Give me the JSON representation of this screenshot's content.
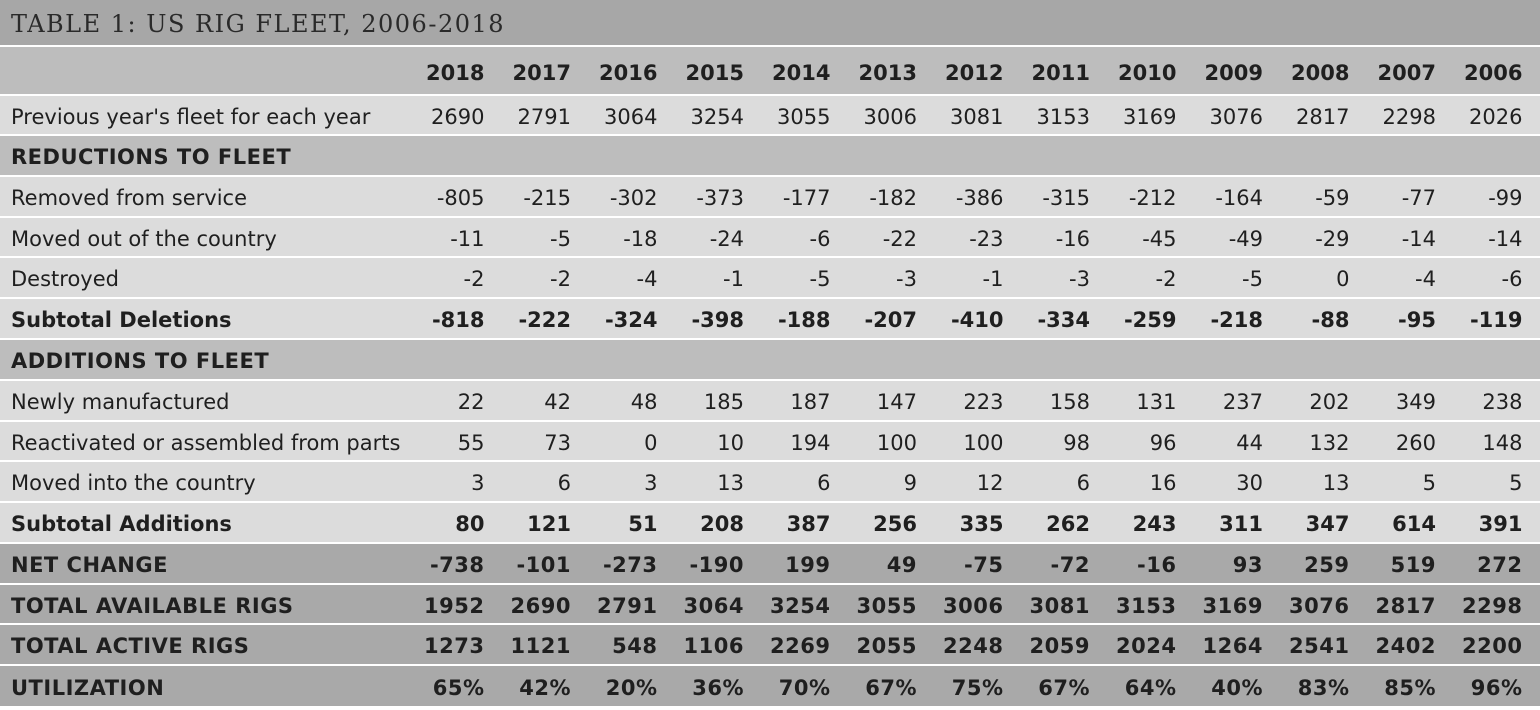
{
  "title": "TABLE 1: US RIG FLEET, 2006-2018",
  "years": [
    "2018",
    "2017",
    "2016",
    "2015",
    "2014",
    "2013",
    "2012",
    "2011",
    "2010",
    "2009",
    "2008",
    "2007",
    "2006"
  ],
  "rows": [
    {
      "label": "Previous year's fleet for each year",
      "values": [
        "2690",
        "2791",
        "3064",
        "3254",
        "3055",
        "3006",
        "3081",
        "3153",
        "3169",
        "3076",
        "2817",
        "2298",
        "2026"
      ]
    },
    {
      "label": "REDUCTIONS TO FLEET",
      "values": []
    },
    {
      "label": "Removed from service",
      "values": [
        "-805",
        "-215",
        "-302",
        "-373",
        "-177",
        "-182",
        "-386",
        "-315",
        "-212",
        "-164",
        "-59",
        "-77",
        "-99"
      ]
    },
    {
      "label": "Moved out of the country",
      "values": [
        "-11",
        "-5",
        "-18",
        "-24",
        "-6",
        "-22",
        "-23",
        "-16",
        "-45",
        "-49",
        "-29",
        "-14",
        "-14"
      ]
    },
    {
      "label": "Destroyed",
      "values": [
        "-2",
        "-2",
        "-4",
        "-1",
        "-5",
        "-3",
        "-1",
        "-3",
        "-2",
        "-5",
        "0",
        "-4",
        "-6"
      ]
    },
    {
      "label": "Subtotal Deletions",
      "values": [
        "-818",
        "-222",
        "-324",
        "-398",
        "-188",
        "-207",
        "-410",
        "-334",
        "-259",
        "-218",
        "-88",
        "-95",
        "-119"
      ]
    },
    {
      "label": "ADDITIONS TO FLEET",
      "values": []
    },
    {
      "label": "Newly manufactured",
      "values": [
        "22",
        "42",
        "48",
        "185",
        "187",
        "147",
        "223",
        "158",
        "131",
        "237",
        "202",
        "349",
        "238"
      ]
    },
    {
      "label": "Reactivated or assembled from parts",
      "values": [
        "55",
        "73",
        "0",
        "10",
        "194",
        "100",
        "100",
        "98",
        "96",
        "44",
        "132",
        "260",
        "148"
      ]
    },
    {
      "label": "Moved into the country",
      "values": [
        "3",
        "6",
        "3",
        "13",
        "6",
        "9",
        "12",
        "6",
        "16",
        "30",
        "13",
        "5",
        "5"
      ]
    },
    {
      "label": "Subtotal Additions",
      "values": [
        "80",
        "121",
        "51",
        "208",
        "387",
        "256",
        "335",
        "262",
        "243",
        "311",
        "347",
        "614",
        "391"
      ]
    },
    {
      "label": "NET CHANGE",
      "values": [
        "-738",
        "-101",
        "-273",
        "-190",
        "199",
        "49",
        "-75",
        "-72",
        "-16",
        "93",
        "259",
        "519",
        "272"
      ]
    },
    {
      "label": "TOTAL AVAILABLE RIGS",
      "values": [
        "1952",
        "2690",
        "2791",
        "3064",
        "3254",
        "3055",
        "3006",
        "3081",
        "3153",
        "3169",
        "3076",
        "2817",
        "2298"
      ]
    },
    {
      "label": "TOTAL ACTIVE RIGS",
      "values": [
        "1273",
        "1121",
        "548",
        "1106",
        "2269",
        "2055",
        "2248",
        "2059",
        "2024",
        "1264",
        "2541",
        "2402",
        "2200"
      ]
    },
    {
      "label": "UTILIZATION",
      "values": [
        "65%",
        "42%",
        "20%",
        "36%",
        "70%",
        "67%",
        "75%",
        "67%",
        "64%",
        "40%",
        "83%",
        "85%",
        "96%"
      ]
    }
  ]
}
